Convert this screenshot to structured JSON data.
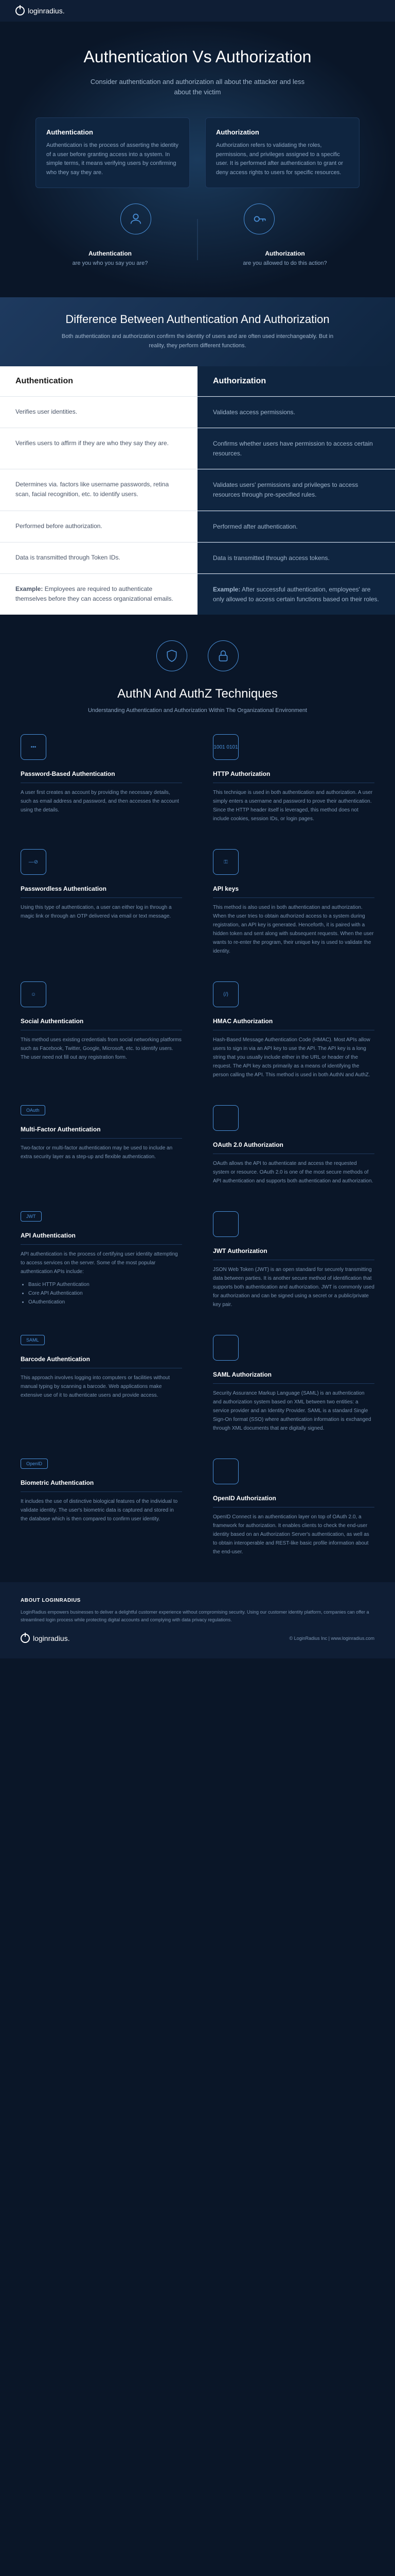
{
  "brand": {
    "name": "loginradius."
  },
  "hero": {
    "title": "Authentication Vs Authorization",
    "subtitle": "Consider authentication and authorization all about the attacker and less about the victim"
  },
  "cards": [
    {
      "title": "Authentication",
      "body": "Authentication is the process of asserting the identity of a user before granting access into a system. In simple terms, it means verifying users by confirming who they say they are."
    },
    {
      "title": "Authorization",
      "body": "Authorization refers to validating the roles, permissions, and privileges assigned to a specific user. It is performed after authentication to grant or deny access rights to users for specific resources."
    }
  ],
  "labels": [
    {
      "title": "Authentication",
      "question": "are you who you say you are?"
    },
    {
      "title": "Authorization",
      "question": "are you allowed to do this action?"
    }
  ],
  "diff_header": {
    "title": "Difference Between Authentication And Authorization",
    "body": "Both authentication and authorization confirm the identity of users and are often used interchangeably. But in reality, they perform  different functions."
  },
  "comparison": {
    "col_left": "Authentication",
    "col_right": "Authorization",
    "rows": [
      {
        "left": "Verifies user identities.",
        "right": "Validates access permissions."
      },
      {
        "left": "Verifies users to affirm if they are who they say they are.",
        "right": "Confirms whether users have permission to access certain resources."
      },
      {
        "left": "Determines via. factors like username passwords, retina scan, facial recognition, etc. to identify users.",
        "right": "Validates users' permissions and privileges to access resources through pre-specified rules."
      },
      {
        "left": "Performed before authorization.",
        "right": "Performed after authentication."
      },
      {
        "left": "Data is transmitted through Token IDs.",
        "right": "Data is transmitted through access tokens."
      },
      {
        "left": "<b>Example:</b> Employees are required to authenticate themselves before they can access organizational emails.",
        "right": "<b>Example:</b> After successful authentication, employees' are only allowed to access certain functions based on their roles."
      }
    ]
  },
  "tech_header": {
    "title": "AuthN And AuthZ Techniques",
    "subtitle": "Understanding Authentication and Authorization Within The Organizational Environment"
  },
  "techniques": [
    {
      "title": "Password-Based Authentication",
      "icon": "•••",
      "body": "A user first creates an account by providing the necessary details, such as email address and password, and then accesses the account using the details."
    },
    {
      "title": "HTTP Authorization",
      "icon": "1001\n0101",
      "body": "This technique is used in both authentication and authorization. A user simply enters a username and password to prove their authentication. Since the HTTP header itself is leveraged, this method does not include cookies, session IDs, or login pages."
    },
    {
      "title": "Passwordless Authentication",
      "icon": "—⊘",
      "body": "Using this type of authentication, a user can either log in through a magic link or through an OTP delivered via email or text message."
    },
    {
      "title": "API keys",
      "icon": "⚿",
      "body": "This method is also used in both authentication and authorization. When the user tries to obtain authorized access to a system during registration, an API key is generated. Henceforth, it is paired with a hidden token and sent along with subsequent requests. When the user wants to re-enter the program, their unique key is used to validate the identity."
    },
    {
      "title": "Social Authentication",
      "icon": "☺",
      "body": "This method uses existing credentials from social networking platforms such as Facebook, Twitter, Google, Microsoft, etc. to identify users. The user need not fill out any registration form."
    },
    {
      "title": "HMAC Authorization",
      "icon": "⟨/⟩",
      "body": "Hash-Based Message Authentication Code (HMAC). Most APIs allow users to sign in via an API key to use the API. The API key is a long string that you usually include either in the URL or header of the request.  The API key acts primarily as a means of identifying the person calling the API. This method is used in both AuthN and AuthZ."
    },
    {
      "title": "Multi-Factor Authentication",
      "icon": "⊞",
      "badge": "OAuth",
      "body": "Two-factor or multi-factor authentication may be used to include an extra security layer as a step-up and flexible authentication."
    },
    {
      "title": "OAuth 2.0 Authorization",
      "icon": "",
      "body": "OAuth allows the API to authenticate and access the requested system or resource. OAuth 2.0 is one of the most secure methods of API authentication and supports both authentication and authorization."
    },
    {
      "title": "API Authentication",
      "icon": "API",
      "badge": "JWT",
      "body": "API authentication is the process of certifying user identity attempting to access services on the server. Some of the most popular authentication APIs include:",
      "list": [
        "Basic HTTP Authentication",
        "Core API Authentication",
        "OAuthentication"
      ]
    },
    {
      "title": "JWT Authorization",
      "icon": "",
      "body": "JSON Web Token (JWT) is an open standard for securely transmitting data between parties. It is another secure method of identification that supports both authentication and authorization. JWT is commonly used for authorization and can be signed using a secret or a public/private key pair."
    },
    {
      "title": "Barcode Authentication",
      "icon": "|||",
      "badge": "SAML",
      "body": "This approach involves logging into computers or facilities without manual typing by scanning a barcode. Web applications make extensive use of it to authenticate users and provide access."
    },
    {
      "title": "SAML Authorization",
      "icon": "",
      "body": "Security Assurance Markup Language (SAML) is an authentication and authorization system based on XML between two entities: a service provider and an Identity Provider. SAML is a standard Single Sign-On format (SSO) where authentication information is exchanged through XML documents that are digitally signed."
    },
    {
      "title": "Biometric Authentication",
      "icon": "◉",
      "badge": "OpenID",
      "body": "It includes the use of distinctive biological features of the individual to validate identity. The user's biometric data is captured and stored in the database which is then compared to confirm user identity."
    },
    {
      "title": "OpenID Authorization",
      "icon": "",
      "body": "OpenID Connect is an authentication layer on top of OAuth 2.0, a framework for authorization. It enables clients to check the end-user identity based on an Authorization Server's authentication, as well as to obtain interoperable and REST-like basic profile information about the end-user."
    }
  ],
  "footer": {
    "about_title": "ABOUT LOGINRADIUS",
    "about_body": "LoginRadius empowers businesses to deliver a delightful customer experience without compromising security. Using our customer identity platform, companies can offer a streamlined login process while protecting digital accounts and complying with data privacy regulations.",
    "copyright": "© LoginRadius Inc | www.loginradius.com"
  }
}
